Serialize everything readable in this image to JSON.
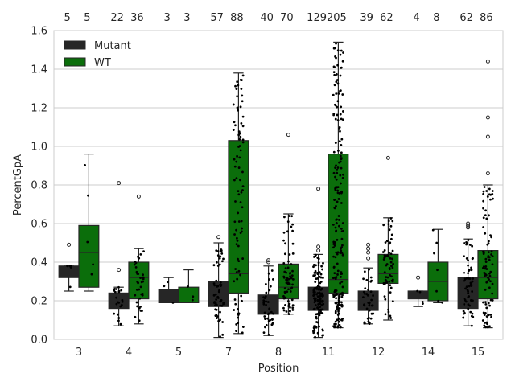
{
  "chart_data": {
    "type": "boxplot",
    "xlabel": "Position",
    "ylabel": "PercentGpA",
    "ylim": [
      0,
      1.6
    ],
    "yticks": [
      0.0,
      0.2,
      0.4,
      0.6,
      0.8,
      1.0,
      1.2,
      1.4,
      1.6
    ],
    "ytick_labels": [
      "0.0",
      "0.2",
      "0.4",
      "0.6",
      "0.8",
      "1.0",
      "1.2",
      "1.4",
      "1.6"
    ],
    "grid": "horizontal",
    "legend": {
      "placement": "top-left",
      "entries": [
        {
          "label": "Mutant",
          "color": "#262626"
        },
        {
          "label": "WT",
          "color": "#0b6e0b"
        }
      ]
    },
    "colors": {
      "Mutant": "#262626",
      "WT": "#0b6e0b",
      "grid": "#cccccc",
      "axis": "#cccccc"
    },
    "categories": [
      "3",
      "4",
      "5",
      "7",
      "8",
      "11",
      "12",
      "14",
      "15"
    ],
    "series": [
      {
        "name": "Mutant",
        "counts": [
          "5",
          "22",
          "3",
          "57",
          "40",
          "129",
          "39",
          "4",
          "62"
        ],
        "boxes": [
          {
            "whislo": 0.25,
            "q1": 0.32,
            "med": 0.33,
            "q3": 0.38,
            "whishi": 0.38,
            "fliers": [
              0.49
            ]
          },
          {
            "whislo": 0.07,
            "q1": 0.16,
            "med": 0.2,
            "q3": 0.24,
            "whishi": 0.27,
            "fliers": [
              0.36,
              0.81
            ]
          },
          {
            "whislo": 0.19,
            "q1": 0.19,
            "med": 0.2,
            "q3": 0.26,
            "whishi": 0.32,
            "fliers": []
          },
          {
            "whislo": 0.01,
            "q1": 0.17,
            "med": 0.21,
            "q3": 0.3,
            "whishi": 0.5,
            "fliers": [
              0.53
            ]
          },
          {
            "whislo": 0.02,
            "q1": 0.13,
            "med": 0.18,
            "q3": 0.23,
            "whishi": 0.38,
            "fliers": [
              0.4,
              0.41
            ]
          },
          {
            "whislo": 0.01,
            "q1": 0.15,
            "med": 0.2,
            "q3": 0.27,
            "whishi": 0.44,
            "fliers": [
              0.46,
              0.48,
              0.78
            ]
          },
          {
            "whislo": 0.08,
            "q1": 0.15,
            "med": 0.19,
            "q3": 0.25,
            "whishi": 0.37,
            "fliers": [
              0.42,
              0.45,
              0.47,
              0.49
            ]
          },
          {
            "whislo": 0.17,
            "q1": 0.21,
            "med": 0.23,
            "q3": 0.25,
            "whishi": 0.25,
            "fliers": [
              0.32
            ]
          },
          {
            "whislo": 0.07,
            "q1": 0.16,
            "med": 0.23,
            "q3": 0.32,
            "whishi": 0.52,
            "fliers": [
              0.58,
              0.59,
              0.6
            ]
          }
        ]
      },
      {
        "name": "WT",
        "counts": [
          "5",
          "36",
          "3",
          "88",
          "70",
          "205",
          "62",
          "8",
          "86"
        ],
        "boxes": [
          {
            "whislo": 0.25,
            "q1": 0.27,
            "med": 0.45,
            "q3": 0.59,
            "whishi": 0.96,
            "fliers": []
          },
          {
            "whislo": 0.08,
            "q1": 0.21,
            "med": 0.32,
            "q3": 0.4,
            "whishi": 0.47,
            "fliers": [
              0.74
            ]
          },
          {
            "whislo": 0.19,
            "q1": 0.19,
            "med": 0.19,
            "q3": 0.27,
            "whishi": 0.36,
            "fliers": []
          },
          {
            "whislo": 0.03,
            "q1": 0.24,
            "med": 0.34,
            "q3": 1.03,
            "whishi": 1.38,
            "fliers": []
          },
          {
            "whislo": 0.13,
            "q1": 0.21,
            "med": 0.27,
            "q3": 0.39,
            "whishi": 0.65,
            "fliers": [
              1.06
            ]
          },
          {
            "whislo": 0.06,
            "q1": 0.24,
            "med": 0.31,
            "q3": 0.96,
            "whishi": 1.54,
            "fliers": []
          },
          {
            "whislo": 0.1,
            "q1": 0.29,
            "med": 0.34,
            "q3": 0.44,
            "whishi": 0.63,
            "fliers": [
              0.94
            ]
          },
          {
            "whislo": 0.19,
            "q1": 0.2,
            "med": 0.3,
            "q3": 0.4,
            "whishi": 0.57,
            "fliers": []
          },
          {
            "whislo": 0.06,
            "q1": 0.21,
            "med": 0.32,
            "q3": 0.46,
            "whishi": 0.8,
            "fliers": [
              0.86,
              1.05,
              1.15,
              1.44
            ]
          }
        ]
      }
    ]
  }
}
